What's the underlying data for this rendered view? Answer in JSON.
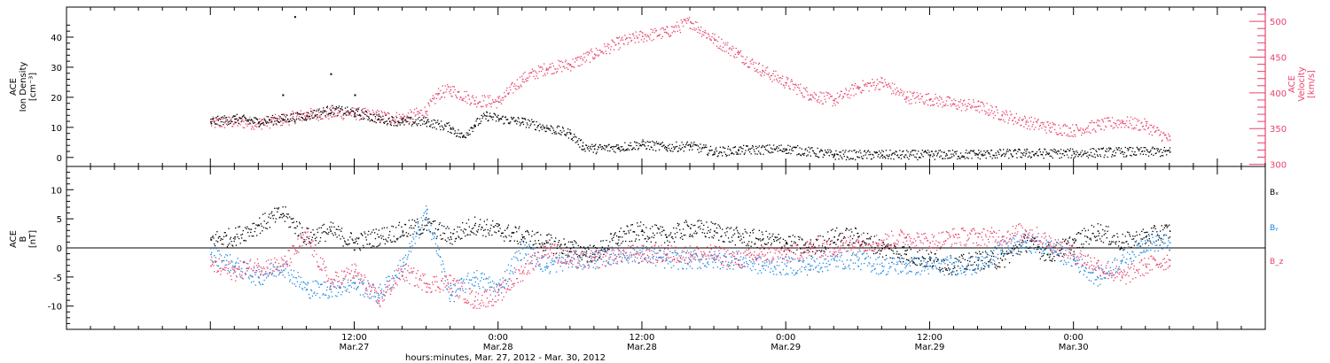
{
  "chart_data": [
    {
      "type": "scatter",
      "panel": "top",
      "left_axis_label": [
        "ACE",
        "Ion Density",
        "[cm⁻³]"
      ],
      "right_axis_label": [
        "ACE",
        "Velocity",
        "[km/s]"
      ],
      "left_ylim": [
        -3,
        50
      ],
      "left_yticks": [
        0,
        10,
        20,
        30,
        40
      ],
      "right_ylim": [
        297,
        520
      ],
      "right_yticks": [
        300,
        350,
        400,
        450,
        500
      ],
      "series": [
        {
          "axis": "left",
          "color": "#000000",
          "x": [
            0,
            2,
            4,
            6,
            8,
            10,
            12,
            14,
            16,
            18,
            20,
            21,
            22,
            23,
            24,
            26,
            28,
            30,
            31,
            32,
            34,
            36,
            38,
            40,
            42,
            44,
            48,
            52,
            56,
            60,
            64,
            68,
            72,
            76,
            80
          ],
          "y": [
            12,
            13,
            12,
            13,
            14,
            16,
            15,
            13,
            12,
            12,
            10,
            7,
            11,
            14,
            13,
            12,
            10,
            8,
            4,
            3,
            3.5,
            4.5,
            3.5,
            4,
            2,
            2.5,
            3,
            1,
            1,
            1,
            1.2,
            1.5,
            1.5,
            2,
            2
          ]
        },
        {
          "axis": "right",
          "color": "#e8436b",
          "x": [
            0,
            2,
            4,
            6,
            8,
            10,
            12,
            14,
            16,
            18,
            19,
            20,
            22,
            24,
            26,
            28,
            30,
            32,
            34,
            36,
            38,
            40,
            42,
            44,
            46,
            48,
            50,
            52,
            54,
            56,
            58,
            60,
            62,
            64,
            66,
            68,
            70,
            72,
            74,
            76,
            78,
            80
          ],
          "y": [
            358,
            360,
            358,
            363,
            370,
            372,
            372,
            368,
            365,
            375,
            400,
            405,
            390,
            388,
            420,
            435,
            440,
            455,
            470,
            480,
            485,
            500,
            475,
            455,
            432,
            415,
            398,
            390,
            408,
            415,
            395,
            392,
            385,
            382,
            370,
            360,
            352,
            348,
            355,
            360,
            355,
            335
          ]
        }
      ],
      "sparse_points": [
        {
          "x": 7,
          "y": 47
        },
        {
          "x": 10,
          "y": 28
        },
        {
          "x": 6,
          "y": 21
        },
        {
          "x": 12,
          "y": 21
        }
      ]
    },
    {
      "type": "scatter",
      "panel": "bottom",
      "left_axis_label": [
        "ACE",
        "B",
        "[nT]"
      ],
      "left_ylim": [
        -14,
        14
      ],
      "left_yticks": [
        -10,
        -5,
        0,
        5,
        10
      ],
      "legend": [
        "Bₓ",
        "Bᵧ",
        "B_z"
      ],
      "series": [
        {
          "name": "Bx",
          "legend_label": "Bₓ",
          "color": "#000000",
          "x": [
            0,
            2,
            4,
            6,
            8,
            10,
            12,
            14,
            16,
            18,
            20,
            22,
            24,
            26,
            28,
            30,
            32,
            34,
            36,
            38,
            40,
            42,
            44,
            46,
            48,
            50,
            52,
            54,
            56,
            58,
            60,
            62,
            64,
            66,
            68,
            70,
            72,
            74,
            76,
            78,
            80
          ],
          "y": [
            1.5,
            2,
            4,
            6,
            2,
            3,
            1,
            2,
            3,
            4,
            2,
            4,
            3,
            2,
            1,
            0,
            -1,
            2,
            3,
            2,
            3.5,
            3,
            2,
            1.5,
            1,
            0,
            2,
            2,
            0,
            -1,
            -2,
            -3,
            -2,
            -2,
            1,
            -1,
            1,
            3,
            1,
            2,
            3
          ]
        },
        {
          "name": "By",
          "legend_label": "Bᵧ",
          "color": "#1f88e0",
          "x": [
            0,
            2,
            4,
            6,
            8,
            10,
            12,
            14,
            16,
            18,
            20,
            22,
            24,
            26,
            28,
            30,
            32,
            34,
            36,
            38,
            40,
            42,
            44,
            46,
            48,
            50,
            52,
            54,
            56,
            58,
            60,
            62,
            64,
            66,
            68,
            70,
            72,
            74,
            76,
            78,
            80
          ],
          "y": [
            -1,
            -3,
            -5,
            -3,
            -7,
            -7,
            -6,
            -8,
            -3,
            6,
            -8,
            -5,
            -7,
            0,
            -3,
            -2,
            -2,
            -1,
            -1,
            -2,
            -2,
            -2,
            -2,
            -3,
            -3,
            -3,
            -2,
            -2,
            -3,
            -3,
            -3,
            -3,
            -3,
            0,
            1,
            0,
            -2,
            -5,
            -2,
            1,
            1
          ]
        },
        {
          "name": "Bz",
          "legend_label": "B_z",
          "color": "#e8436b",
          "x": [
            0,
            2,
            4,
            6,
            8,
            10,
            12,
            14,
            16,
            18,
            20,
            22,
            24,
            26,
            28,
            30,
            32,
            34,
            36,
            38,
            40,
            42,
            44,
            46,
            48,
            50,
            52,
            54,
            56,
            58,
            60,
            62,
            64,
            66,
            68,
            70,
            72,
            74,
            76,
            78,
            80
          ],
          "y": [
            -3,
            -4,
            -3,
            -3,
            2,
            -6,
            -4,
            -9,
            -4,
            -6,
            -6,
            -9,
            -8,
            -4,
            0,
            -2,
            -2,
            -1,
            -1,
            -1,
            -1,
            -1,
            -2,
            -1,
            -1,
            0,
            0,
            1,
            1,
            2,
            1,
            2,
            2,
            2,
            3,
            1,
            -1,
            -3,
            -5,
            -3,
            -2
          ]
        }
      ]
    }
  ],
  "x_axis": {
    "range_hours": [
      -12,
      88
    ],
    "ticks": [
      {
        "hour": 12,
        "time": "12:00",
        "date": "Mar.27"
      },
      {
        "hour": 24,
        "time": "0:00",
        "date": "Mar.28"
      },
      {
        "hour": 36,
        "time": "12:00",
        "date": "Mar.28"
      },
      {
        "hour": 48,
        "time": "0:00",
        "date": "Mar.29"
      },
      {
        "hour": 60,
        "time": "12:00",
        "date": "Mar.29"
      },
      {
        "hour": 72,
        "time": "0:00",
        "date": "Mar.30"
      }
    ],
    "label": "hours:minutes, Mar. 27, 2012 - Mar. 30, 2012"
  },
  "colors": {
    "density": "#000000",
    "velocity": "#e8436b",
    "bx": "#000000",
    "by": "#1f88e0",
    "bz": "#e8436b"
  }
}
